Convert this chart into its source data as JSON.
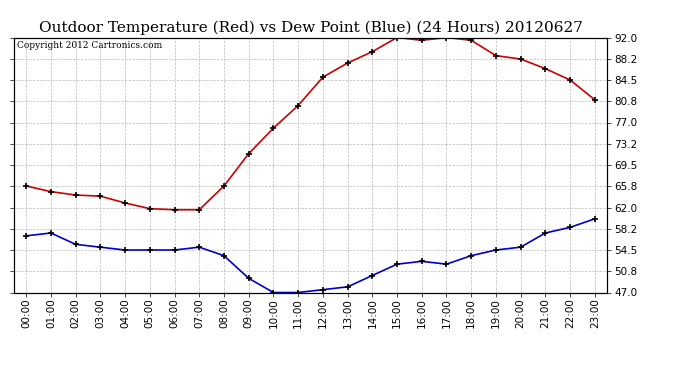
{
  "title": "Outdoor Temperature (Red) vs Dew Point (Blue) (24 Hours) 20120627",
  "copyright": "Copyright 2012 Cartronics.com",
  "hours": [
    "00:00",
    "01:00",
    "02:00",
    "03:00",
    "04:00",
    "05:00",
    "06:00",
    "07:00",
    "08:00",
    "09:00",
    "10:00",
    "11:00",
    "12:00",
    "13:00",
    "14:00",
    "15:00",
    "16:00",
    "17:00",
    "18:00",
    "19:00",
    "20:00",
    "21:00",
    "22:00",
    "23:00"
  ],
  "temp_red": [
    65.8,
    64.8,
    64.2,
    64.0,
    62.8,
    61.8,
    61.6,
    61.6,
    65.8,
    71.5,
    76.0,
    80.0,
    85.0,
    87.5,
    89.5,
    92.0,
    91.5,
    92.0,
    91.5,
    88.8,
    88.2,
    86.5,
    84.5,
    81.0
  ],
  "dew_blue": [
    57.0,
    57.5,
    55.5,
    55.0,
    54.5,
    54.5,
    54.5,
    55.0,
    53.5,
    49.5,
    47.0,
    47.0,
    47.5,
    48.0,
    50.0,
    52.0,
    52.5,
    52.0,
    53.5,
    54.5,
    55.0,
    57.5,
    58.5,
    60.0
  ],
  "ylim": [
    47.0,
    92.0
  ],
  "yticks": [
    47.0,
    50.8,
    54.5,
    58.2,
    62.0,
    65.8,
    69.5,
    73.2,
    77.0,
    80.8,
    84.5,
    88.2,
    92.0
  ],
  "bg_color": "#ffffff",
  "plot_bg_color": "#ffffff",
  "grid_color": "#aaaaaa",
  "red_color": "#cc0000",
  "blue_color": "#0000cc",
  "title_fontsize": 11,
  "tick_fontsize": 7.5,
  "copyright_fontsize": 6.5
}
